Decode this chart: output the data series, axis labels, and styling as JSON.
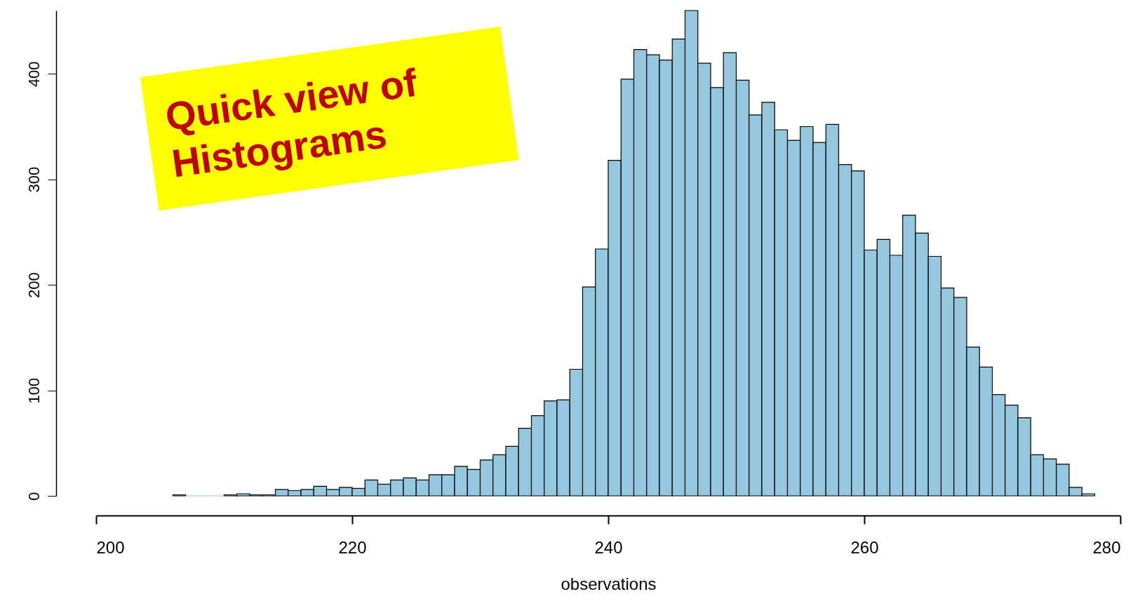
{
  "chart_data": {
    "type": "histogram",
    "title": "Quick view of Histograms",
    "xlabel": "observations",
    "bins": [
      206,
      207,
      208,
      209,
      210,
      211,
      212,
      213,
      214,
      215,
      216,
      217,
      218,
      219,
      220,
      221,
      222,
      223,
      224,
      225,
      226,
      227,
      228,
      229,
      230,
      231,
      232,
      233,
      234,
      235,
      236,
      237,
      238,
      239,
      240,
      241,
      242,
      243,
      244,
      245,
      246,
      247,
      248,
      249,
      250,
      251,
      252,
      253,
      254,
      255,
      256,
      257,
      258,
      259,
      260,
      261,
      262,
      263,
      264,
      265,
      266,
      267,
      268,
      269,
      270,
      271,
      272,
      273,
      274,
      275,
      276,
      277,
      278
    ],
    "values": [
      1,
      0,
      0,
      0,
      1,
      2,
      1,
      1,
      6,
      5,
      6,
      9,
      6,
      8,
      7,
      15,
      11,
      15,
      17,
      15,
      20,
      20,
      28,
      25,
      34,
      39,
      47,
      64,
      76,
      90,
      91,
      120,
      198,
      234,
      318,
      395,
      423,
      418,
      413,
      433,
      460,
      410,
      387,
      420,
      394,
      361,
      373,
      347,
      337,
      350,
      335,
      352,
      314,
      308,
      233,
      243,
      228,
      266,
      249,
      227,
      197,
      188,
      141,
      122,
      96,
      86,
      74,
      39,
      35,
      30,
      8,
      2
    ],
    "color": "#95c8de",
    "xlim": [
      200,
      280
    ],
    "xticks": [
      200,
      220,
      240,
      260,
      280
    ],
    "ylim": [
      0,
      460
    ],
    "yticks": [
      0,
      100,
      200,
      300,
      400
    ],
    "grid": false
  }
}
